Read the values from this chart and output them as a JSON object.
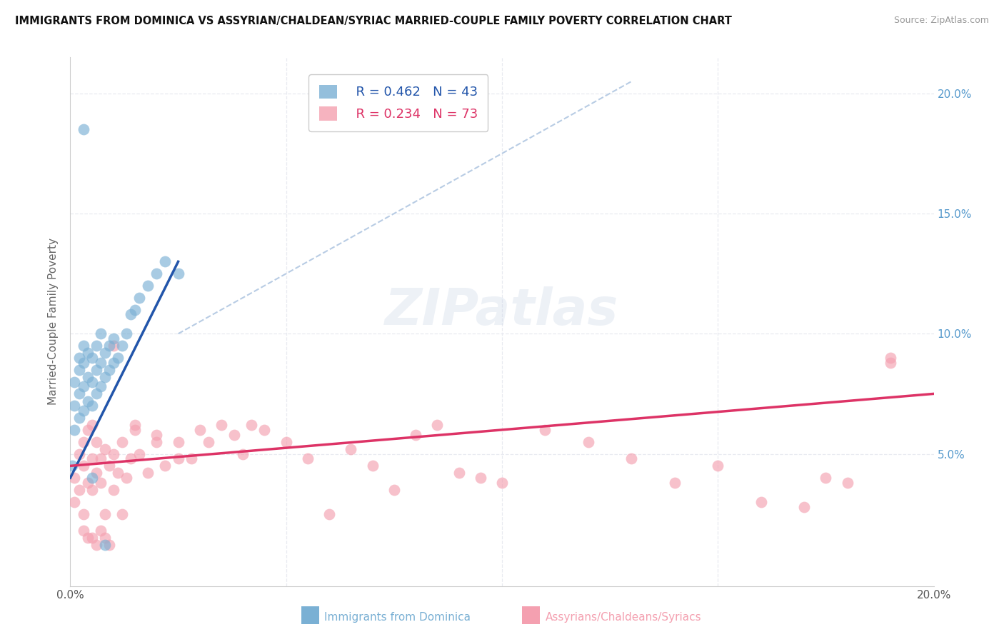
{
  "title": "IMMIGRANTS FROM DOMINICA VS ASSYRIAN/CHALDEAN/SYRIAC MARRIED-COUPLE FAMILY POVERTY CORRELATION CHART",
  "source": "Source: ZipAtlas.com",
  "ylabel": "Married-Couple Family Poverty",
  "xlim": [
    0.0,
    0.2
  ],
  "ylim": [
    -0.005,
    0.215
  ],
  "color_blue": "#7ab0d4",
  "color_pink": "#f4a0b0",
  "trend_blue": "#2255aa",
  "trend_pink": "#dd3366",
  "ref_line_color": "#b8cce4",
  "background_color": "#ffffff",
  "grid_color": "#e8eaf0",
  "legend_R1": "R = 0.462",
  "legend_N1": "N = 43",
  "legend_R2": "R = 0.234",
  "legend_N2": "N = 73",
  "legend_label1": "Immigrants from Dominica",
  "legend_label2": "Assyrians/Chaldeans/Syriacs",
  "blue_points_x": [
    0.0005,
    0.001,
    0.001,
    0.001,
    0.002,
    0.002,
    0.002,
    0.002,
    0.003,
    0.003,
    0.003,
    0.003,
    0.004,
    0.004,
    0.004,
    0.005,
    0.005,
    0.005,
    0.006,
    0.006,
    0.006,
    0.007,
    0.007,
    0.007,
    0.008,
    0.008,
    0.009,
    0.009,
    0.01,
    0.01,
    0.011,
    0.012,
    0.013,
    0.014,
    0.015,
    0.016,
    0.018,
    0.02,
    0.022,
    0.025,
    0.003,
    0.005,
    0.008
  ],
  "blue_points_y": [
    0.045,
    0.06,
    0.07,
    0.08,
    0.065,
    0.075,
    0.085,
    0.09,
    0.068,
    0.078,
    0.088,
    0.095,
    0.072,
    0.082,
    0.092,
    0.07,
    0.08,
    0.09,
    0.075,
    0.085,
    0.095,
    0.078,
    0.088,
    0.1,
    0.082,
    0.092,
    0.085,
    0.095,
    0.088,
    0.098,
    0.09,
    0.095,
    0.1,
    0.108,
    0.11,
    0.115,
    0.12,
    0.125,
    0.13,
    0.125,
    0.185,
    0.04,
    0.012
  ],
  "pink_points_x": [
    0.001,
    0.001,
    0.002,
    0.002,
    0.003,
    0.003,
    0.003,
    0.004,
    0.004,
    0.005,
    0.005,
    0.005,
    0.006,
    0.006,
    0.007,
    0.007,
    0.008,
    0.008,
    0.009,
    0.01,
    0.01,
    0.011,
    0.012,
    0.013,
    0.014,
    0.015,
    0.016,
    0.018,
    0.02,
    0.022,
    0.025,
    0.028,
    0.03,
    0.032,
    0.035,
    0.038,
    0.04,
    0.042,
    0.045,
    0.05,
    0.055,
    0.06,
    0.065,
    0.07,
    0.075,
    0.08,
    0.085,
    0.09,
    0.095,
    0.1,
    0.11,
    0.12,
    0.13,
    0.14,
    0.15,
    0.16,
    0.17,
    0.175,
    0.18,
    0.19,
    0.003,
    0.004,
    0.005,
    0.006,
    0.007,
    0.008,
    0.009,
    0.01,
    0.012,
    0.015,
    0.02,
    0.025,
    0.19
  ],
  "pink_points_y": [
    0.04,
    0.03,
    0.05,
    0.035,
    0.045,
    0.025,
    0.055,
    0.038,
    0.06,
    0.048,
    0.035,
    0.062,
    0.042,
    0.055,
    0.048,
    0.038,
    0.052,
    0.025,
    0.045,
    0.05,
    0.035,
    0.042,
    0.055,
    0.04,
    0.048,
    0.06,
    0.05,
    0.042,
    0.058,
    0.045,
    0.055,
    0.048,
    0.06,
    0.055,
    0.062,
    0.058,
    0.05,
    0.062,
    0.06,
    0.055,
    0.048,
    0.025,
    0.052,
    0.045,
    0.035,
    0.058,
    0.062,
    0.042,
    0.04,
    0.038,
    0.06,
    0.055,
    0.048,
    0.038,
    0.045,
    0.03,
    0.028,
    0.04,
    0.038,
    0.088,
    0.018,
    0.015,
    0.015,
    0.012,
    0.018,
    0.015,
    0.012,
    0.095,
    0.025,
    0.062,
    0.055,
    0.048,
    0.09
  ]
}
